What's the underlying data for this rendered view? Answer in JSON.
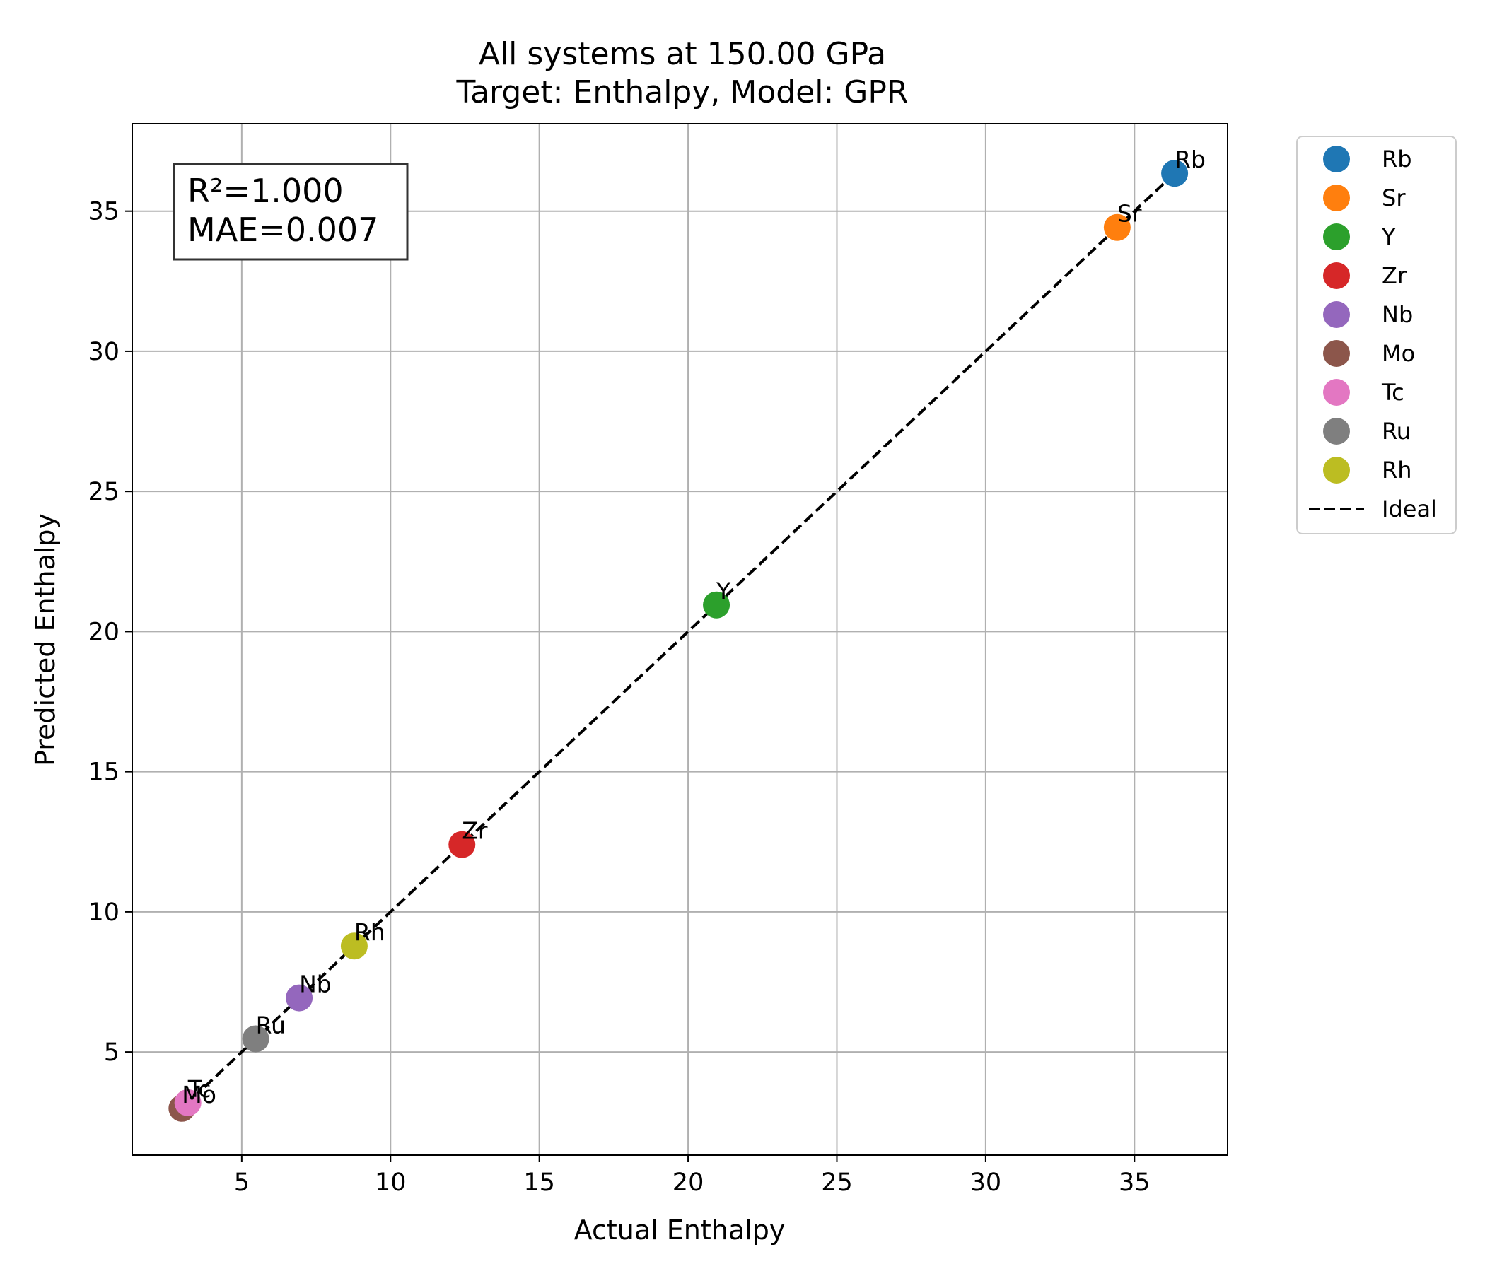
{
  "chart_data": {
    "type": "scatter",
    "title": "All systems at 150.00 GPa",
    "subtitle": "Target: Enthalpy, Model: GPR",
    "xlabel": "Actual Enthalpy",
    "ylabel": "Predicted Enthalpy",
    "xlim": [
      1.32,
      38.13
    ],
    "ylim": [
      1.32,
      38.12
    ],
    "xticks": [
      5,
      10,
      15,
      20,
      25,
      30,
      35
    ],
    "yticks": [
      5,
      10,
      15,
      20,
      25,
      30,
      35
    ],
    "grid": true,
    "legend_position": "outside upper right",
    "annotation": {
      "r2": "R²=1.000",
      "mae": "MAE=0.007"
    },
    "series": [
      {
        "name": "Rb",
        "color": "#1f77b4",
        "x": [
          36.35
        ],
        "y": [
          36.35
        ]
      },
      {
        "name": "Sr",
        "color": "#ff7f0e",
        "x": [
          34.42
        ],
        "y": [
          34.42
        ]
      },
      {
        "name": "Y",
        "color": "#2ca02c",
        "x": [
          20.95
        ],
        "y": [
          20.95
        ]
      },
      {
        "name": "Zr",
        "color": "#d62728",
        "x": [
          12.4
        ],
        "y": [
          12.4
        ]
      },
      {
        "name": "Nb",
        "color": "#9467bd",
        "x": [
          6.93
        ],
        "y": [
          6.93
        ]
      },
      {
        "name": "Mo",
        "color": "#8c564b",
        "x": [
          2.99
        ],
        "y": [
          2.99
        ]
      },
      {
        "name": "Tc",
        "color": "#e377c2",
        "x": [
          3.19
        ],
        "y": [
          3.19
        ]
      },
      {
        "name": "Ru",
        "color": "#7f7f7f",
        "x": [
          5.47
        ],
        "y": [
          5.47
        ]
      },
      {
        "name": "Rh",
        "color": "#bcbd22",
        "x": [
          8.78
        ],
        "y": [
          8.78
        ]
      }
    ],
    "ideal_line": {
      "name": "Ideal",
      "color": "#000000",
      "x": [
        2.99,
        36.35
      ],
      "y": [
        2.99,
        36.35
      ]
    }
  }
}
